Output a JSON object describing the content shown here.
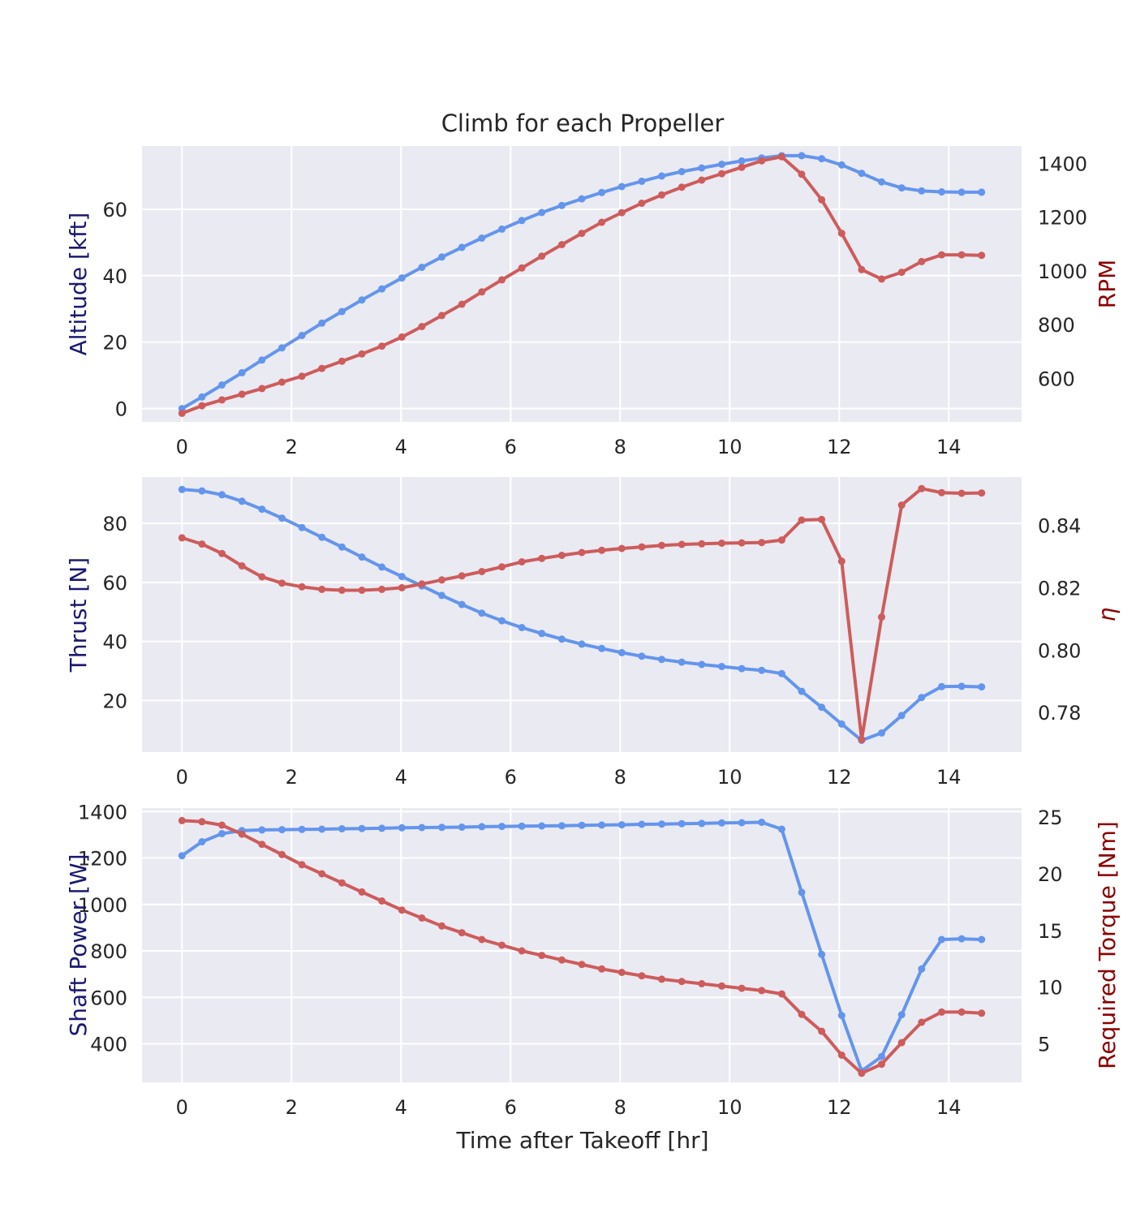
{
  "title": "Climb for each Propeller",
  "xlabel": "Time after Takeoff [hr]",
  "colors": {
    "left_series": "#6495ed",
    "right_series": "#cd5c5c",
    "left_label": "#191970",
    "right_label": "#8b0000",
    "panel_bg": "#eaeaf2",
    "grid": "#ffffff"
  },
  "chart_data": [
    {
      "type": "line",
      "x": [
        0,
        0.365,
        0.73,
        1.095,
        1.46,
        1.825,
        2.19,
        2.555,
        2.92,
        3.285,
        3.65,
        4.015,
        4.38,
        4.745,
        5.11,
        5.475,
        5.84,
        6.205,
        6.57,
        6.935,
        7.3,
        7.665,
        8.03,
        8.395,
        8.76,
        9.125,
        9.49,
        9.855,
        10.22,
        10.585,
        10.95,
        11.315,
        11.68,
        12.045,
        12.41,
        12.775,
        13.14,
        13.505,
        13.87,
        14.235,
        14.6
      ],
      "xticks": [
        0,
        2,
        4,
        6,
        8,
        10,
        12,
        14
      ],
      "xlim": [
        -0.73,
        15.33
      ],
      "ylabel_left": "Altitude [kft]",
      "ylabel_right": "RPM",
      "ylim_left": [
        -4,
        79
      ],
      "ylim_right": [
        438,
        1465
      ],
      "yticks_left": [
        0,
        20,
        40,
        60
      ],
      "yticks_right": [
        600,
        800,
        1000,
        1200,
        1400
      ],
      "series": [
        {
          "axis": "left",
          "values": [
            0,
            3.5,
            7.1,
            10.8,
            14.6,
            18.3,
            22,
            25.7,
            29.2,
            32.7,
            36,
            39.3,
            42.5,
            45.6,
            48.5,
            51.3,
            54,
            56.6,
            59,
            61.1,
            63.1,
            65,
            66.8,
            68.4,
            70,
            71.3,
            72.4,
            73.5,
            74.5,
            75.4,
            76.1,
            76.1,
            75.2,
            73.3,
            70.8,
            68.2,
            66.4,
            65.5,
            65.2,
            65.1,
            65.1
          ]
        },
        {
          "axis": "right",
          "values": [
            470,
            498,
            520,
            541,
            562,
            586,
            608,
            637,
            664,
            691,
            720,
            754,
            793,
            834,
            876,
            922,
            967,
            1011,
            1055,
            1098,
            1140,
            1181,
            1217,
            1252,
            1283,
            1312,
            1338,
            1362,
            1386,
            1410,
            1425,
            1360,
            1265,
            1140,
            1005,
            970,
            995,
            1035,
            1060,
            1060,
            1058
          ]
        }
      ]
    },
    {
      "type": "line",
      "x": [
        0,
        0.365,
        0.73,
        1.095,
        1.46,
        1.825,
        2.19,
        2.555,
        2.92,
        3.285,
        3.65,
        4.015,
        4.38,
        4.745,
        5.11,
        5.475,
        5.84,
        6.205,
        6.57,
        6.935,
        7.3,
        7.665,
        8.03,
        8.395,
        8.76,
        9.125,
        9.49,
        9.855,
        10.22,
        10.585,
        10.95,
        11.315,
        11.68,
        12.045,
        12.41,
        12.775,
        13.14,
        13.505,
        13.87,
        14.235,
        14.6
      ],
      "xticks": [
        0,
        2,
        4,
        6,
        8,
        10,
        12,
        14
      ],
      "xlim": [
        -0.73,
        15.33
      ],
      "ylabel_left": "Thrust [N]",
      "ylabel_right": "η",
      "ylim_left": [
        2.5,
        95.7
      ],
      "ylim_right": [
        0.7673,
        0.8555
      ],
      "yticks_left": [
        20,
        40,
        60,
        80
      ],
      "yticks_right": [
        0.78,
        0.8,
        0.82,
        0.84
      ],
      "ytick_labels_right": [
        "0.78",
        "0.80",
        "0.82",
        "0.84"
      ],
      "series": [
        {
          "axis": "left",
          "values": [
            91.5,
            91,
            89.7,
            87.5,
            84.8,
            81.8,
            78.6,
            75.3,
            72,
            68.6,
            65.2,
            62,
            58.8,
            55.6,
            52.5,
            49.6,
            47,
            44.7,
            42.7,
            40.8,
            39.1,
            37.6,
            36.2,
            35,
            33.9,
            33,
            32.2,
            31.5,
            30.8,
            30.2,
            29.1,
            23.1,
            17.7,
            12,
            6.5,
            9,
            14.9,
            21,
            24.7,
            24.8,
            24.6
          ]
        },
        {
          "axis": "right",
          "values": [
            0.836,
            0.834,
            0.831,
            0.827,
            0.8235,
            0.8215,
            0.8203,
            0.8195,
            0.8192,
            0.8192,
            0.8195,
            0.82,
            0.8212,
            0.8225,
            0.8238,
            0.8252,
            0.8267,
            0.8283,
            0.8294,
            0.8304,
            0.8313,
            0.832,
            0.8326,
            0.8331,
            0.8336,
            0.8339,
            0.8341,
            0.8343,
            0.8344,
            0.8345,
            0.8353,
            0.8417,
            0.8419,
            0.8285,
            0.7713,
            0.8106,
            0.8465,
            0.8518,
            0.8505,
            0.8503,
            0.8504
          ]
        }
      ]
    },
    {
      "type": "line",
      "x": [
        0,
        0.365,
        0.73,
        1.095,
        1.46,
        1.825,
        2.19,
        2.555,
        2.92,
        3.285,
        3.65,
        4.015,
        4.38,
        4.745,
        5.11,
        5.475,
        5.84,
        6.205,
        6.57,
        6.935,
        7.3,
        7.665,
        8.03,
        8.395,
        8.76,
        9.125,
        9.49,
        9.855,
        10.22,
        10.585,
        10.95,
        11.315,
        11.68,
        12.045,
        12.41,
        12.775,
        13.14,
        13.505,
        13.87,
        14.235,
        14.6
      ],
      "xticks": [
        0,
        2,
        4,
        6,
        8,
        10,
        12,
        14
      ],
      "xlim": [
        -0.73,
        15.33
      ],
      "xlabel": "Time after Takeoff [hr]",
      "ylabel_left": "Shaft Power [W]",
      "ylabel_right": "Required Torque [Nm]",
      "ylim_left": [
        234,
        1415
      ],
      "ylim_right": [
        1.6,
        25.8
      ],
      "yticks_left": [
        400,
        600,
        800,
        1000,
        1200,
        1400
      ],
      "yticks_right": [
        5,
        10,
        15,
        20,
        25
      ],
      "series": [
        {
          "axis": "left",
          "values": [
            1210,
            1270,
            1305,
            1318,
            1321,
            1322,
            1323,
            1324,
            1326,
            1327,
            1328,
            1330,
            1331,
            1332,
            1333,
            1335,
            1336,
            1337,
            1338,
            1339,
            1341,
            1342,
            1343,
            1345,
            1346,
            1348,
            1349,
            1351,
            1352,
            1354,
            1324,
            1052,
            785,
            522,
            283,
            345,
            525,
            722,
            849,
            852,
            849
          ]
        },
        {
          "axis": "right",
          "values": [
            24.7,
            24.6,
            24.3,
            23.5,
            22.6,
            21.7,
            20.8,
            20,
            19.2,
            18.4,
            17.6,
            16.8,
            16.1,
            15.4,
            14.8,
            14.2,
            13.7,
            13.2,
            12.8,
            12.4,
            12,
            11.6,
            11.3,
            11,
            10.7,
            10.5,
            10.3,
            10.1,
            9.9,
            9.7,
            9.4,
            7.6,
            6.1,
            4,
            2.4,
            3.2,
            5.1,
            6.9,
            7.8,
            7.8,
            7.7
          ]
        }
      ]
    }
  ]
}
